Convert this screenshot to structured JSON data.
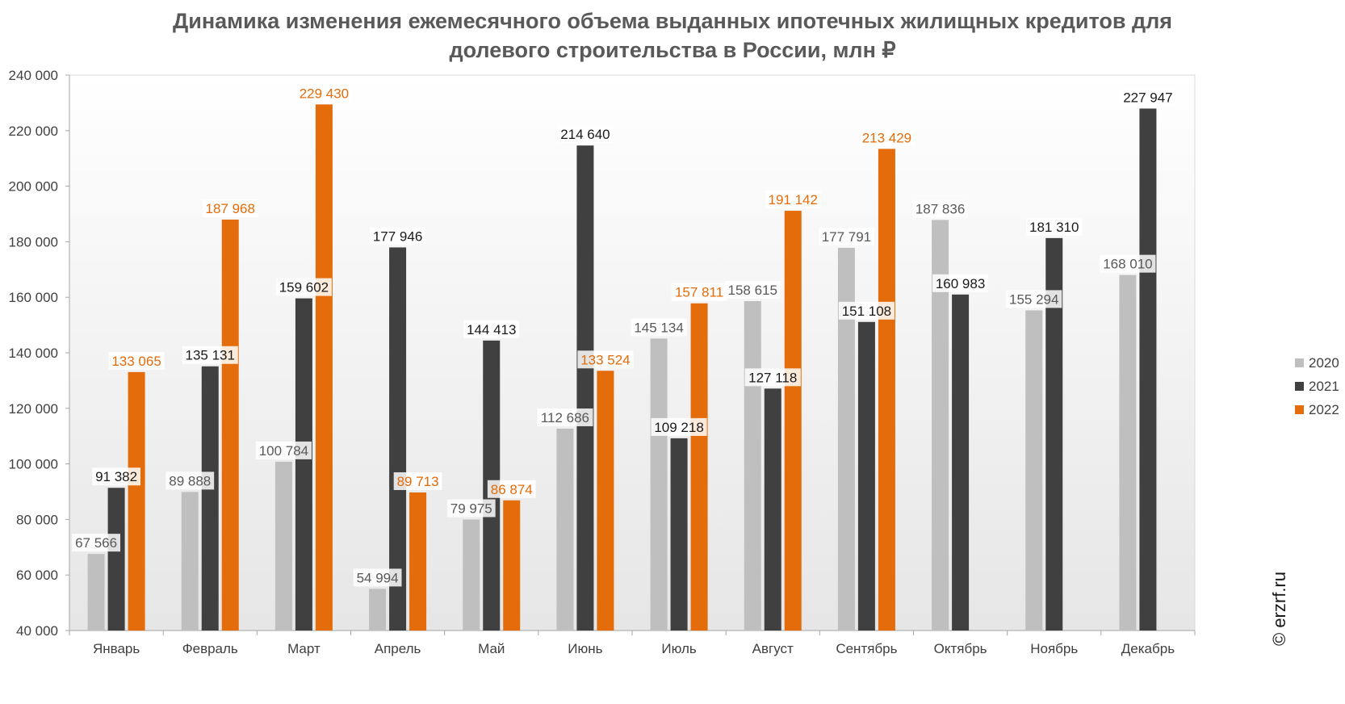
{
  "title_line1": "Динамика изменения ежемесячного объема выданных ипотечных жилищных кредитов для",
  "title_line2": "долевого строительства в России, млн ₽",
  "watermark": "© erzrf.ru",
  "colors": {
    "2020": "#bfbfbf",
    "2021": "#404040",
    "2022": "#e46c0a"
  },
  "chart_data": {
    "type": "bar",
    "title": "Динамика изменения ежемесячного объема выданных ипотечных жилищных кредитов для долевого строительства в России, млн ₽",
    "categories": [
      "Январь",
      "Февраль",
      "Март",
      "Апрель",
      "Май",
      "Июнь",
      "Июль",
      "Август",
      "Сентябрь",
      "Октябрь",
      "Ноябрь",
      "Декабрь"
    ],
    "series": [
      {
        "name": "2020",
        "values": [
          67566,
          89888,
          100784,
          54994,
          79975,
          112686,
          145134,
          158615,
          177791,
          187836,
          155294,
          168010
        ],
        "labels": [
          "67 566",
          "89 888",
          "100 784",
          "54 994",
          "79 975",
          "112 686",
          "145 134",
          "158 615",
          "177 791",
          "187 836",
          "155 294",
          "168 010"
        ]
      },
      {
        "name": "2021",
        "values": [
          91382,
          135131,
          159602,
          177946,
          144413,
          214640,
          109218,
          127118,
          151108,
          160983,
          181310,
          227947
        ],
        "labels": [
          "91 382",
          "135 131",
          "159 602",
          "177 946",
          "144 413",
          "214 640",
          "109 218",
          "127 118",
          "151 108",
          "160 983",
          "181 310",
          "227 947"
        ]
      },
      {
        "name": "2022",
        "values": [
          133065,
          187968,
          229430,
          89713,
          86874,
          133524,
          157811,
          191142,
          213429,
          null,
          null,
          null
        ],
        "labels": [
          "133 065",
          "187 968",
          "229 430",
          "89 713",
          "86 874",
          "133 524",
          "157 811",
          "191 142",
          "213 429",
          "",
          "",
          ""
        ]
      }
    ],
    "ylim": [
      40000,
      240000
    ],
    "yticks": [
      40000,
      60000,
      80000,
      100000,
      120000,
      140000,
      160000,
      180000,
      200000,
      220000,
      240000
    ],
    "ytick_labels": [
      "40 000",
      "60 000",
      "80 000",
      "100 000",
      "120 000",
      "140 000",
      "160 000",
      "180 000",
      "200 000",
      "220 000",
      "240 000"
    ],
    "grid": false,
    "legend": "right"
  }
}
